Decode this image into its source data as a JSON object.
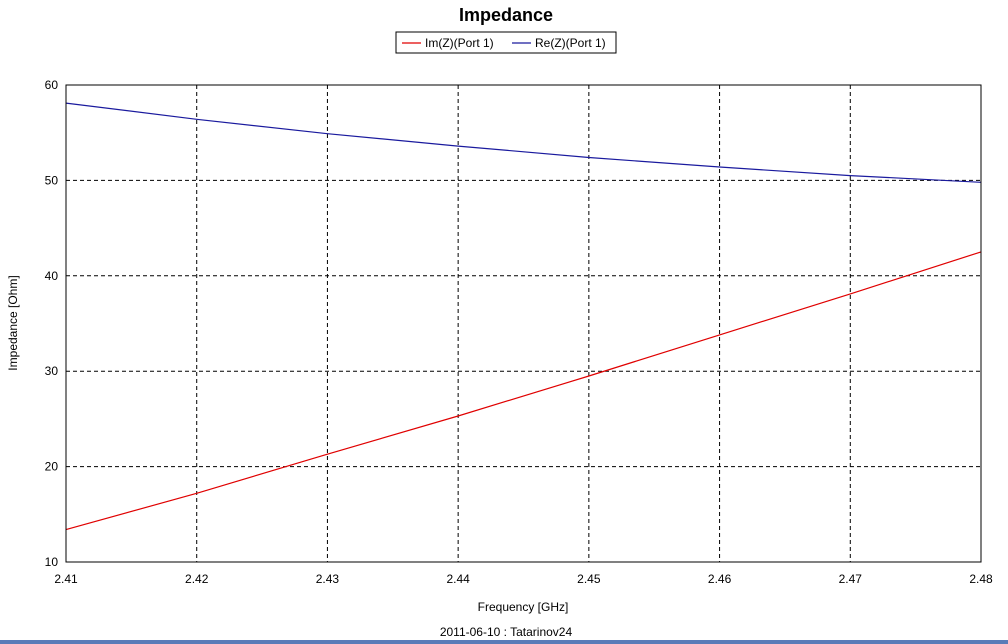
{
  "chart_data": {
    "type": "line",
    "title": "Impedance",
    "xlabel": "Frequency [GHz]",
    "ylabel": "Impedance [Ohm]",
    "xlim": [
      2.41,
      2.48
    ],
    "ylim": [
      10,
      60
    ],
    "xticks": [
      "2.41",
      "2.42",
      "2.43",
      "2.44",
      "2.45",
      "2.46",
      "2.47",
      "2.48"
    ],
    "yticks": [
      "10",
      "20",
      "30",
      "40",
      "50",
      "60"
    ],
    "grid": true,
    "legend_position": "top-center",
    "series": [
      {
        "name": "Im(Z)(Port 1)",
        "color": "#e00000",
        "x": [
          2.41,
          2.42,
          2.43,
          2.44,
          2.45,
          2.46,
          2.47,
          2.48
        ],
        "y": [
          13.4,
          17.2,
          21.3,
          25.3,
          29.5,
          33.8,
          38.1,
          42.5
        ]
      },
      {
        "name": "Re(Z)(Port 1)",
        "color": "#1a1a9e",
        "x": [
          2.41,
          2.42,
          2.43,
          2.44,
          2.45,
          2.46,
          2.47,
          2.48
        ],
        "y": [
          58.1,
          56.4,
          54.9,
          53.6,
          52.4,
          51.4,
          50.5,
          49.8
        ]
      }
    ],
    "footer": "2011-06-10 : Tatarinov24"
  }
}
